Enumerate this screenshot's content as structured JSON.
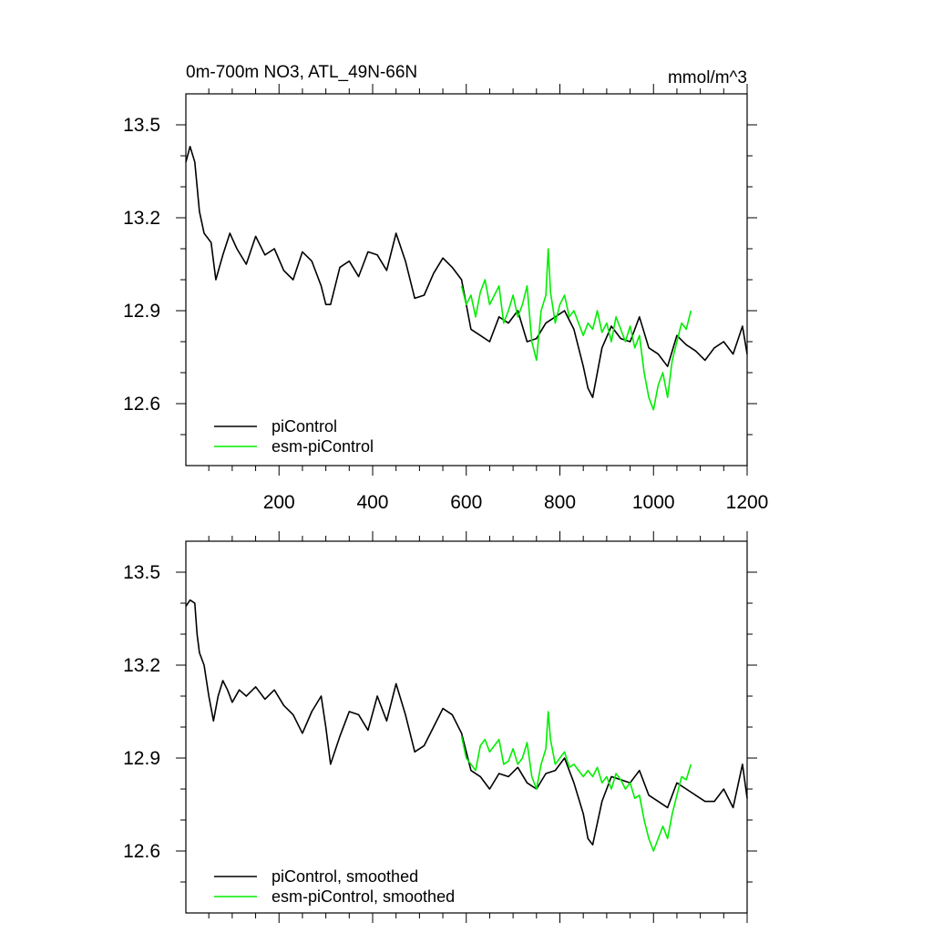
{
  "chart_data": [
    {
      "type": "line",
      "title": "0m-700m NO3, ATL_49N-66N",
      "units": "mmol/m^3",
      "xlim": [
        1,
        1200
      ],
      "ylim": [
        12.4,
        13.6
      ],
      "xticks": [
        200,
        400,
        600,
        800,
        1000,
        1200
      ],
      "xtick_labels": [
        "200",
        "400",
        "600",
        "800",
        "1000",
        "1200"
      ],
      "yticks": [
        12.6,
        12.9,
        13.2,
        13.5
      ],
      "ytick_labels": [
        "12.6",
        "12.9",
        "13.2",
        "13.5"
      ],
      "legend_position": "bottom-left",
      "series": [
        {
          "name": "piControl",
          "color": "#000000",
          "x": [
            1,
            10,
            20,
            30,
            40,
            55,
            65,
            80,
            95,
            110,
            130,
            150,
            170,
            190,
            210,
            230,
            250,
            270,
            290,
            300,
            310,
            330,
            350,
            370,
            390,
            410,
            430,
            450,
            470,
            490,
            510,
            530,
            550,
            570,
            590,
            610,
            630,
            650,
            670,
            690,
            710,
            730,
            750,
            770,
            790,
            810,
            830,
            850,
            860,
            870,
            890,
            910,
            930,
            950,
            970,
            990,
            1010,
            1030,
            1050,
            1070,
            1090,
            1110,
            1130,
            1150,
            1170,
            1190,
            1200
          ],
          "values": [
            13.38,
            13.43,
            13.38,
            13.22,
            13.15,
            13.12,
            13.0,
            13.08,
            13.15,
            13.1,
            13.05,
            13.14,
            13.08,
            13.1,
            13.03,
            13.0,
            13.09,
            13.06,
            12.98,
            12.92,
            12.92,
            13.04,
            13.06,
            13.01,
            13.09,
            13.08,
            13.03,
            13.15,
            13.06,
            12.94,
            12.95,
            13.02,
            13.07,
            13.04,
            13.0,
            12.84,
            12.82,
            12.8,
            12.88,
            12.86,
            12.9,
            12.8,
            12.81,
            12.86,
            12.88,
            12.9,
            12.84,
            12.72,
            12.65,
            12.62,
            12.78,
            12.85,
            12.81,
            12.8,
            12.88,
            12.78,
            12.76,
            12.72,
            12.82,
            12.79,
            12.77,
            12.74,
            12.78,
            12.8,
            12.76,
            12.85,
            12.76
          ]
        },
        {
          "name": "esm-piControl",
          "color": "#00ee00",
          "x": [
            590,
            600,
            610,
            620,
            630,
            640,
            650,
            660,
            670,
            680,
            690,
            700,
            710,
            720,
            730,
            740,
            750,
            760,
            770,
            775,
            780,
            790,
            800,
            810,
            820,
            830,
            840,
            850,
            860,
            870,
            880,
            890,
            900,
            910,
            920,
            930,
            940,
            950,
            960,
            970,
            980,
            990,
            1000,
            1010,
            1020,
            1030,
            1040,
            1050,
            1060,
            1070,
            1080
          ],
          "values": [
            12.98,
            12.92,
            12.95,
            12.88,
            12.96,
            13.0,
            12.92,
            12.95,
            12.98,
            12.86,
            12.9,
            12.95,
            12.88,
            12.92,
            12.98,
            12.8,
            12.74,
            12.9,
            12.95,
            13.1,
            12.96,
            12.86,
            12.92,
            12.95,
            12.88,
            12.9,
            12.86,
            12.82,
            12.86,
            12.84,
            12.9,
            12.83,
            12.86,
            12.8,
            12.88,
            12.84,
            12.8,
            12.85,
            12.78,
            12.82,
            12.7,
            12.62,
            12.58,
            12.66,
            12.7,
            12.62,
            12.74,
            12.8,
            12.86,
            12.84,
            12.9
          ]
        }
      ]
    },
    {
      "type": "line",
      "title": "",
      "units": "",
      "xlim": [
        1,
        1200
      ],
      "ylim": [
        12.4,
        13.6
      ],
      "yticks": [
        12.6,
        12.9,
        13.2,
        13.5
      ],
      "ytick_labels": [
        "12.6",
        "12.9",
        "13.2",
        "13.5"
      ],
      "legend_position": "bottom-left",
      "series": [
        {
          "name": "piControl, smoothed",
          "color": "#000000",
          "x": [
            1,
            10,
            20,
            25,
            30,
            40,
            50,
            60,
            70,
            80,
            90,
            100,
            115,
            130,
            150,
            170,
            190,
            210,
            230,
            250,
            270,
            290,
            300,
            310,
            330,
            350,
            370,
            390,
            410,
            430,
            450,
            470,
            490,
            510,
            530,
            550,
            570,
            590,
            610,
            630,
            650,
            670,
            690,
            710,
            730,
            750,
            770,
            790,
            810,
            830,
            850,
            860,
            870,
            890,
            910,
            930,
            950,
            970,
            990,
            1010,
            1030,
            1050,
            1070,
            1090,
            1110,
            1130,
            1150,
            1170,
            1190,
            1200
          ],
          "values": [
            13.39,
            13.41,
            13.4,
            13.3,
            13.24,
            13.2,
            13.1,
            13.02,
            13.1,
            13.15,
            13.12,
            13.08,
            13.12,
            13.1,
            13.13,
            13.09,
            13.12,
            13.07,
            13.04,
            12.98,
            13.05,
            13.1,
            13.0,
            12.88,
            12.97,
            13.05,
            13.04,
            12.99,
            13.1,
            13.02,
            13.14,
            13.04,
            12.92,
            12.94,
            13.0,
            13.06,
            13.04,
            12.98,
            12.86,
            12.84,
            12.8,
            12.85,
            12.84,
            12.87,
            12.82,
            12.8,
            12.85,
            12.86,
            12.9,
            12.82,
            12.72,
            12.64,
            12.62,
            12.76,
            12.84,
            12.83,
            12.82,
            12.86,
            12.78,
            12.76,
            12.74,
            12.82,
            12.8,
            12.78,
            12.76,
            12.76,
            12.8,
            12.74,
            12.88,
            12.77
          ]
        },
        {
          "name": "esm-piControl, smoothed",
          "color": "#00ee00",
          "x": [
            590,
            600,
            610,
            620,
            630,
            640,
            650,
            660,
            670,
            680,
            690,
            700,
            710,
            720,
            730,
            740,
            750,
            760,
            770,
            775,
            780,
            790,
            800,
            810,
            820,
            830,
            840,
            850,
            860,
            870,
            880,
            890,
            900,
            910,
            920,
            930,
            940,
            950,
            960,
            970,
            980,
            990,
            1000,
            1010,
            1020,
            1030,
            1040,
            1050,
            1060,
            1070,
            1080
          ],
          "values": [
            12.97,
            12.9,
            12.88,
            12.86,
            12.94,
            12.96,
            12.92,
            12.94,
            12.96,
            12.88,
            12.89,
            12.93,
            12.88,
            12.9,
            12.95,
            12.84,
            12.8,
            12.88,
            12.93,
            13.05,
            12.96,
            12.88,
            12.9,
            12.92,
            12.87,
            12.88,
            12.86,
            12.84,
            12.86,
            12.84,
            12.87,
            12.82,
            12.84,
            12.8,
            12.85,
            12.83,
            12.8,
            12.82,
            12.77,
            12.78,
            12.7,
            12.64,
            12.6,
            12.64,
            12.68,
            12.64,
            12.72,
            12.78,
            12.84,
            12.83,
            12.88
          ]
        }
      ]
    }
  ]
}
